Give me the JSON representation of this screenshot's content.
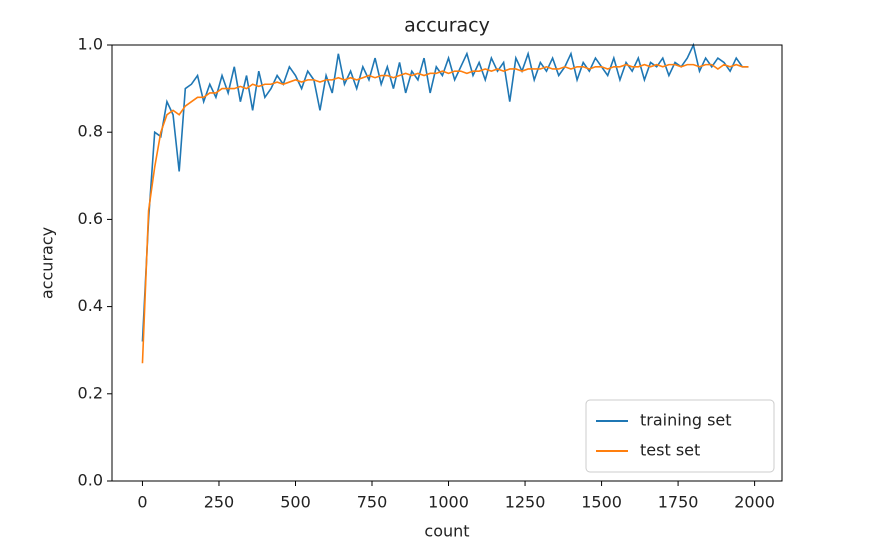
{
  "chart_data": {
    "type": "line",
    "title": "accuracy",
    "x_label": "count",
    "y_label": "accuracy",
    "x": [
      0,
      20,
      40,
      60,
      80,
      100,
      120,
      140,
      160,
      180,
      200,
      220,
      240,
      260,
      280,
      300,
      320,
      340,
      360,
      380,
      400,
      420,
      440,
      460,
      480,
      500,
      520,
      540,
      560,
      580,
      600,
      620,
      640,
      660,
      680,
      700,
      720,
      740,
      760,
      780,
      800,
      820,
      840,
      860,
      880,
      900,
      920,
      940,
      960,
      980,
      1000,
      1020,
      1040,
      1060,
      1080,
      1100,
      1120,
      1140,
      1160,
      1180,
      1200,
      1220,
      1240,
      1260,
      1280,
      1300,
      1320,
      1340,
      1360,
      1380,
      1400,
      1420,
      1440,
      1460,
      1480,
      1500,
      1520,
      1540,
      1560,
      1580,
      1600,
      1620,
      1640,
      1660,
      1680,
      1700,
      1720,
      1740,
      1760,
      1780,
      1800,
      1820,
      1840,
      1860,
      1880,
      1900,
      1920,
      1940,
      1960,
      1980
    ],
    "series": [
      {
        "name": "training set",
        "color": "#1f77b4",
        "values": [
          0.32,
          0.6,
          0.8,
          0.79,
          0.87,
          0.84,
          0.71,
          0.9,
          0.91,
          0.93,
          0.87,
          0.91,
          0.88,
          0.93,
          0.89,
          0.95,
          0.87,
          0.93,
          0.85,
          0.94,
          0.88,
          0.9,
          0.93,
          0.91,
          0.95,
          0.93,
          0.9,
          0.94,
          0.92,
          0.85,
          0.93,
          0.89,
          0.98,
          0.91,
          0.94,
          0.9,
          0.95,
          0.92,
          0.97,
          0.91,
          0.95,
          0.9,
          0.96,
          0.89,
          0.94,
          0.92,
          0.97,
          0.89,
          0.95,
          0.93,
          0.97,
          0.92,
          0.95,
          0.98,
          0.93,
          0.96,
          0.92,
          0.97,
          0.94,
          0.96,
          0.87,
          0.97,
          0.94,
          0.98,
          0.92,
          0.96,
          0.94,
          0.97,
          0.93,
          0.95,
          0.98,
          0.92,
          0.96,
          0.94,
          0.97,
          0.95,
          0.93,
          0.97,
          0.92,
          0.96,
          0.94,
          0.97,
          0.92,
          0.96,
          0.95,
          0.97,
          0.93,
          0.96,
          0.95,
          0.97,
          1.0,
          0.94,
          0.97,
          0.95,
          0.97,
          0.96,
          0.94,
          0.97,
          0.95,
          0.95
        ]
      },
      {
        "name": "test set",
        "color": "#ff7f0e",
        "values": [
          0.27,
          0.62,
          0.72,
          0.8,
          0.84,
          0.85,
          0.84,
          0.86,
          0.87,
          0.88,
          0.88,
          0.89,
          0.89,
          0.9,
          0.9,
          0.9,
          0.905,
          0.9,
          0.91,
          0.905,
          0.91,
          0.91,
          0.915,
          0.91,
          0.915,
          0.92,
          0.915,
          0.92,
          0.92,
          0.915,
          0.92,
          0.92,
          0.925,
          0.92,
          0.925,
          0.92,
          0.925,
          0.93,
          0.925,
          0.93,
          0.93,
          0.925,
          0.93,
          0.935,
          0.93,
          0.935,
          0.93,
          0.935,
          0.935,
          0.94,
          0.935,
          0.94,
          0.94,
          0.935,
          0.94,
          0.94,
          0.945,
          0.94,
          0.945,
          0.94,
          0.945,
          0.945,
          0.94,
          0.945,
          0.945,
          0.945,
          0.95,
          0.945,
          0.945,
          0.95,
          0.945,
          0.95,
          0.95,
          0.945,
          0.95,
          0.95,
          0.945,
          0.95,
          0.95,
          0.955,
          0.95,
          0.95,
          0.955,
          0.95,
          0.955,
          0.95,
          0.955,
          0.955,
          0.95,
          0.955,
          0.955,
          0.95,
          0.955,
          0.955,
          0.945,
          0.955,
          0.95,
          0.955,
          0.95,
          0.95
        ]
      }
    ],
    "xlim": [
      -99.5,
      2089.5
    ],
    "ylim": [
      0,
      1
    ],
    "xticks": [
      0,
      250,
      500,
      750,
      1000,
      1250,
      1500,
      1750,
      2000
    ],
    "yticks": [
      {
        "value": 0,
        "label": "0.0"
      },
      0.2,
      0.4,
      0.6,
      0.8,
      {
        "value": 1,
        "label": "1.0"
      }
    ],
    "legend": "lower right"
  }
}
